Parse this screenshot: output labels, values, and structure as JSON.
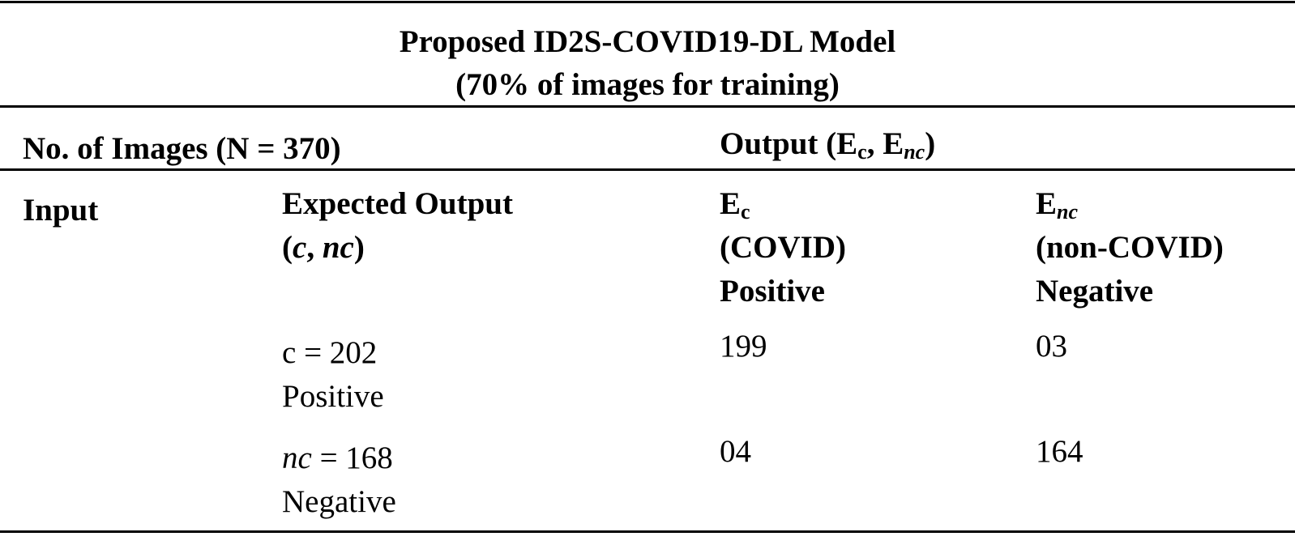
{
  "title": {
    "lines": [
      "Proposed ID2S-COVID19-DL Model",
      "(70% of images for training)"
    ]
  },
  "header": {
    "images": "No. of Images (N = 370)",
    "output": {
      "open": "Output (",
      "e1": {
        "base": "E",
        "sub": "c"
      },
      "sep": ", ",
      "e2": {
        "base": "E",
        "sub": "nc"
      },
      "close": ")"
    }
  },
  "columns": {
    "input": "Input",
    "expected": {
      "label": "Expected Output",
      "parts": [
        "(",
        "c",
        ", ",
        "nc",
        ")"
      ]
    },
    "positive": {
      "base": "E",
      "sub": "c",
      "group": "(COVID)",
      "label": "Positive"
    },
    "negative": {
      "base": "E",
      "sub": "nc",
      "group": "(non-COVID)",
      "label": "Negative"
    }
  },
  "rows": [
    {
      "var": "c",
      "rest": " = 202",
      "label": "Positive",
      "positive": 199,
      "negative": "03"
    },
    {
      "var": "nc",
      "rest": " = 168",
      "label": "Negative",
      "positive": "04",
      "negative": 164
    }
  ]
}
